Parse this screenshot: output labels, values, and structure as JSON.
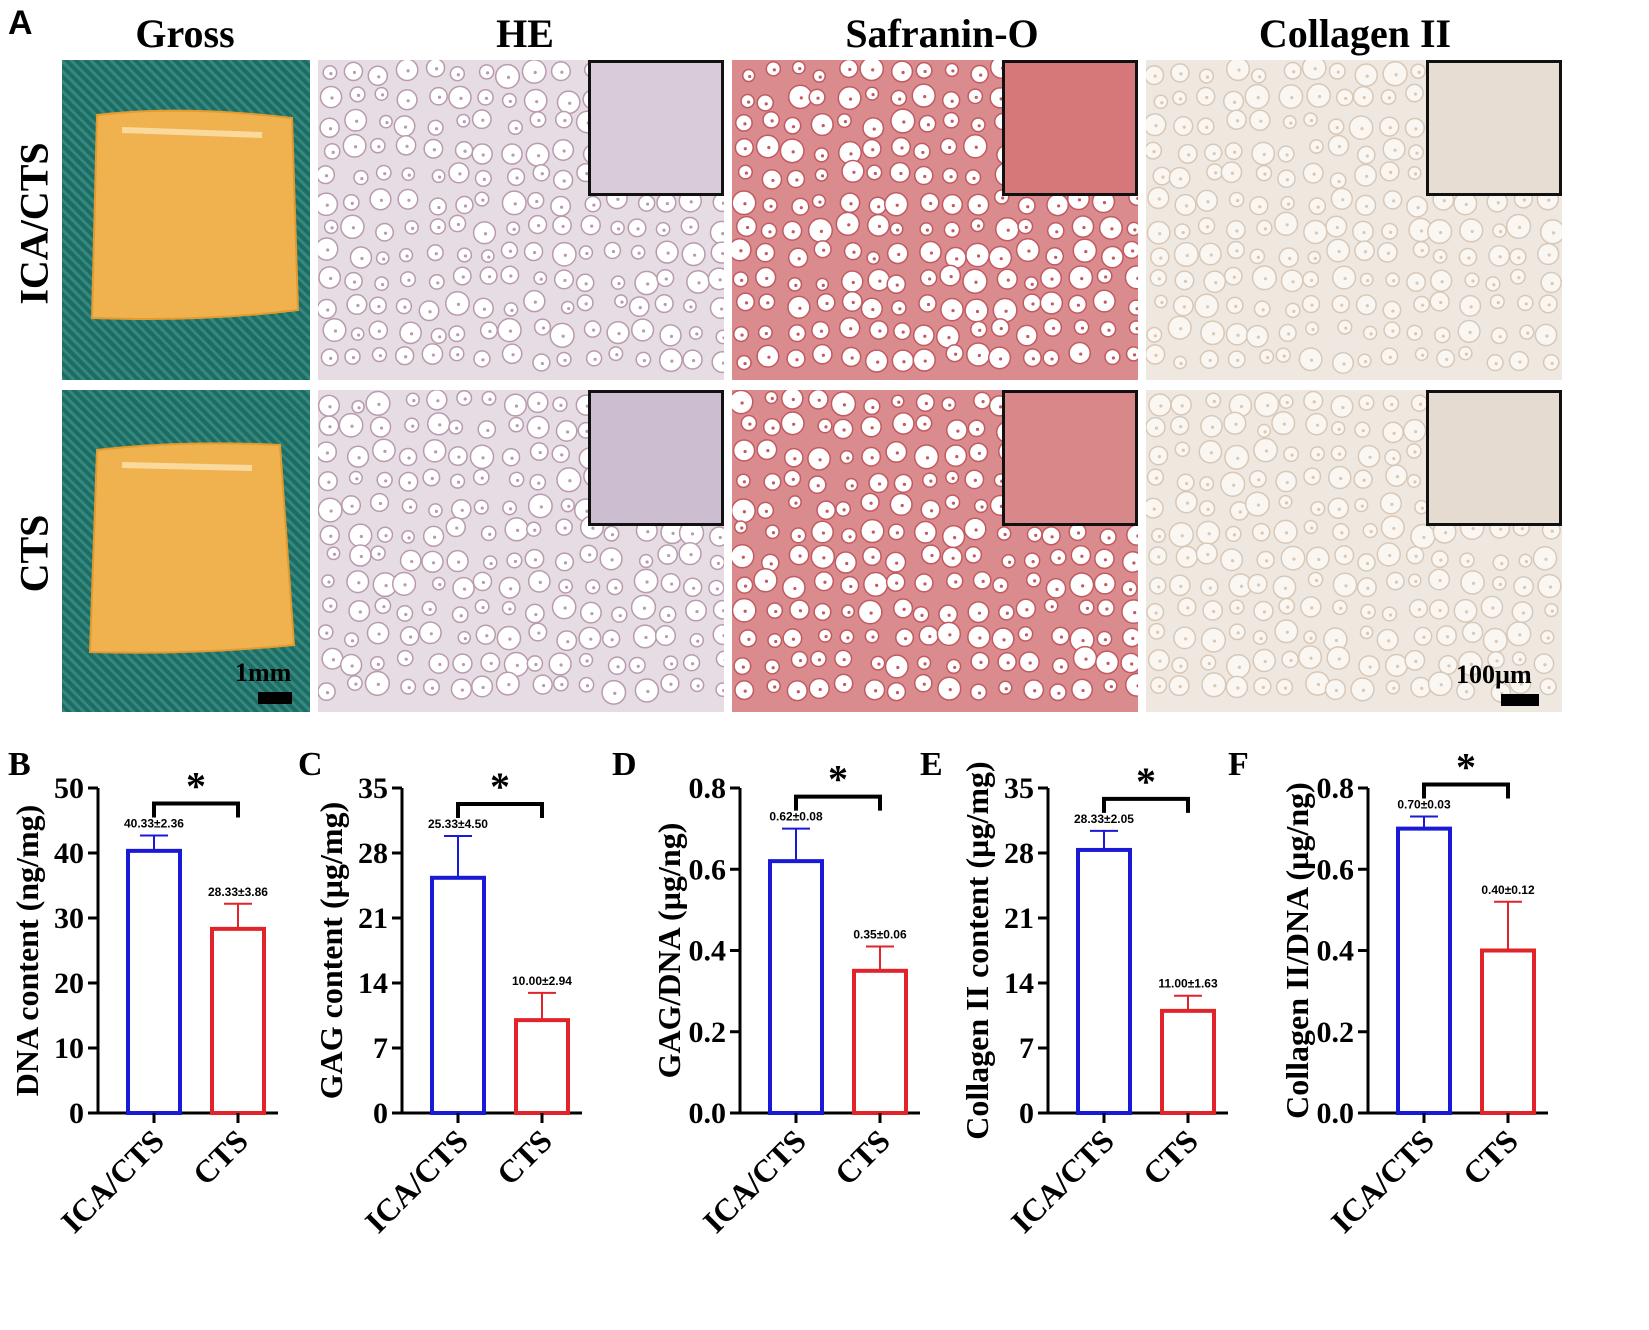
{
  "panel_a": {
    "letter": "A",
    "columns": [
      "Gross",
      "HE",
      "Safranin-O",
      "Collagen II"
    ],
    "rows": [
      "ICA/CTS",
      "CTS"
    ],
    "scale_gross": "1mm",
    "scale_micro": "100µm"
  },
  "colors": {
    "blue": "#1a1ad6",
    "red": "#e0242a"
  },
  "chart_data": [
    {
      "letter": "B",
      "type": "bar",
      "categories": [
        "ICA/CTS",
        "CTS"
      ],
      "values": [
        40.33,
        28.33
      ],
      "errors": [
        2.36,
        3.86
      ],
      "data_labels": [
        "40.33±2.36",
        "28.33±3.86"
      ],
      "ylabel": "DNA content (ng/mg)",
      "ylim": [
        0,
        50
      ],
      "yticks": [
        "0",
        "10",
        "20",
        "30",
        "40",
        "50"
      ],
      "significance": "*"
    },
    {
      "letter": "C",
      "type": "bar",
      "categories": [
        "ICA/CTS",
        "CTS"
      ],
      "values": [
        25.33,
        10.0
      ],
      "errors": [
        4.5,
        2.94
      ],
      "data_labels": [
        "25.33±4.50",
        "10.00±2.94"
      ],
      "ylabel": "GAG content (µg/mg)",
      "ylim": [
        0,
        35
      ],
      "yticks": [
        "0",
        "7",
        "14",
        "21",
        "28",
        "35"
      ],
      "significance": "*"
    },
    {
      "letter": "D",
      "type": "bar",
      "categories": [
        "ICA/CTS",
        "CTS"
      ],
      "values": [
        0.62,
        0.35
      ],
      "errors": [
        0.08,
        0.06
      ],
      "data_labels": [
        "0.62±0.08",
        "0.35±0.06"
      ],
      "ylabel": "GAG/DNA (µg/ng)",
      "ylim": [
        0,
        0.8
      ],
      "yticks": [
        "0.0",
        "0.2",
        "0.4",
        "0.6",
        "0.8"
      ],
      "significance": "*"
    },
    {
      "letter": "E",
      "type": "bar",
      "categories": [
        "ICA/CTS",
        "CTS"
      ],
      "values": [
        28.33,
        11.0
      ],
      "errors": [
        2.05,
        1.63
      ],
      "data_labels": [
        "28.33±2.05",
        "11.00±1.63"
      ],
      "ylabel": "Collagen II content (µg/mg)",
      "ylim": [
        0,
        35
      ],
      "yticks": [
        "0",
        "7",
        "14",
        "21",
        "28",
        "35"
      ],
      "significance": "*"
    },
    {
      "letter": "F",
      "type": "bar",
      "categories": [
        "ICA/CTS",
        "CTS"
      ],
      "values": [
        0.7,
        0.4
      ],
      "errors": [
        0.03,
        0.12
      ],
      "data_labels": [
        "0.70±0.03",
        "0.40±0.12"
      ],
      "ylabel": "Collagen II/DNA (µg/ng)",
      "ylim": [
        0,
        0.8
      ],
      "yticks": [
        "0.0",
        "0.2",
        "0.4",
        "0.6",
        "0.8"
      ],
      "significance": "*"
    }
  ]
}
